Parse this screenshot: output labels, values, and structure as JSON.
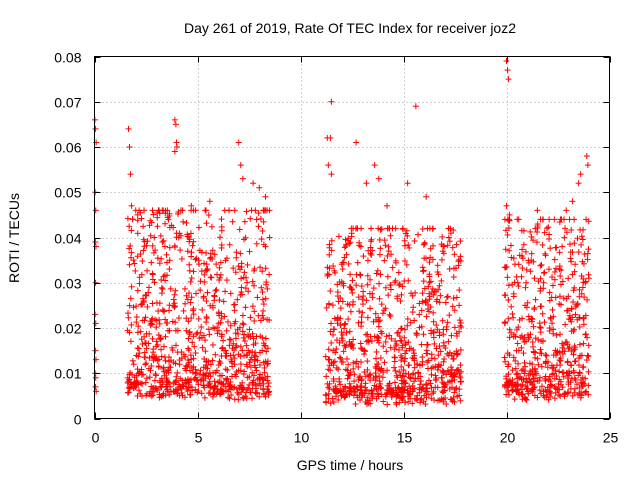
{
  "chart_data": {
    "type": "scatter",
    "title": "Day 261 of 2019, Rate Of TEC Index for receiver joz2",
    "xlabel": "GPS time / hours",
    "ylabel": "ROTI / TECUs",
    "xlim": [
      0,
      25
    ],
    "ylim": [
      0,
      0.08
    ],
    "xticks": [
      0,
      5,
      10,
      15,
      20,
      25
    ],
    "xtick_labels": [
      "0",
      "5",
      "10",
      "15",
      "20",
      "25"
    ],
    "yticks": [
      0,
      0.01,
      0.02,
      0.03,
      0.04,
      0.05,
      0.06,
      0.07,
      0.08
    ],
    "ytick_labels": [
      "0",
      "0.01",
      "0.02",
      "0.03",
      "0.04",
      "0.05",
      "0.06",
      "0.07",
      "0.08"
    ],
    "grid": true,
    "marker": "+",
    "series_color": "#ff0000",
    "series": [
      {
        "name": "ROTI",
        "points": [
          [
            0.02,
            0.066
          ],
          [
            0.05,
            0.064
          ],
          [
            0.08,
            0.061
          ],
          [
            0.03,
            0.05
          ],
          [
            0.06,
            0.046
          ],
          [
            0.04,
            0.039
          ],
          [
            0.07,
            0.038
          ],
          [
            0.05,
            0.03
          ],
          [
            0.03,
            0.023
          ],
          [
            0.06,
            0.021
          ],
          [
            0.04,
            0.015
          ],
          [
            0.07,
            0.013
          ],
          [
            0.03,
            0.01
          ],
          [
            0.06,
            0.009
          ],
          [
            0.05,
            0.007
          ],
          [
            0.08,
            0.006
          ],
          [
            1.65,
            0.064
          ],
          [
            1.7,
            0.06
          ],
          [
            1.75,
            0.054
          ],
          [
            1.8,
            0.047
          ],
          [
            1.85,
            0.044
          ],
          [
            1.9,
            0.035
          ],
          [
            1.7,
            0.034
          ],
          [
            2.9,
            0.04
          ],
          [
            3.3,
            0.039
          ],
          [
            3.9,
            0.066
          ],
          [
            3.95,
            0.065
          ],
          [
            3.98,
            0.061
          ],
          [
            4.0,
            0.06
          ],
          [
            3.9,
            0.059
          ],
          [
            4.7,
            0.047
          ],
          [
            4.8,
            0.046
          ],
          [
            5.6,
            0.048
          ],
          [
            7.0,
            0.061
          ],
          [
            7.1,
            0.056
          ],
          [
            7.2,
            0.053
          ],
          [
            7.7,
            0.052
          ],
          [
            8.0,
            0.051
          ],
          [
            8.3,
            0.049
          ],
          [
            8.5,
            0.04
          ],
          [
            11.3,
            0.062
          ],
          [
            11.45,
            0.062
          ],
          [
            11.5,
            0.07
          ],
          [
            11.35,
            0.056
          ],
          [
            11.5,
            0.054
          ],
          [
            12.7,
            0.061
          ],
          [
            13.2,
            0.052
          ],
          [
            13.6,
            0.056
          ],
          [
            13.8,
            0.053
          ],
          [
            14.2,
            0.047
          ],
          [
            15.2,
            0.052
          ],
          [
            15.6,
            0.069
          ],
          [
            16.1,
            0.049
          ],
          [
            17.2,
            0.04
          ],
          [
            17.7,
            0.025
          ],
          [
            20.0,
            0.079
          ],
          [
            20.05,
            0.077
          ],
          [
            20.1,
            0.075
          ],
          [
            20.0,
            0.047
          ],
          [
            20.15,
            0.045
          ],
          [
            21.5,
            0.046
          ],
          [
            22.9,
            0.046
          ],
          [
            23.2,
            0.048
          ],
          [
            23.5,
            0.052
          ],
          [
            23.6,
            0.054
          ],
          [
            23.9,
            0.058
          ],
          [
            23.95,
            0.056
          ],
          [
            20.1,
            0.012
          ],
          [
            20.3,
            0.008
          ],
          [
            20.6,
            0.015
          ],
          [
            20.9,
            0.025
          ],
          [
            21.2,
            0.035
          ],
          [
            21.4,
            0.042
          ],
          [
            21.8,
            0.03
          ],
          [
            22.1,
            0.02
          ],
          [
            22.4,
            0.014
          ],
          [
            22.7,
            0.038
          ],
          [
            23.0,
            0.027
          ],
          [
            23.3,
            0.016
          ],
          [
            23.7,
            0.009
          ],
          [
            24.0,
            0.031
          ]
        ]
      }
    ],
    "dense_segments": [
      {
        "x_start": 1.6,
        "x_end": 8.5,
        "y_min": 0.004,
        "y_max": 0.046
      },
      {
        "x_start": 11.2,
        "x_end": 17.8,
        "y_min": 0.003,
        "y_max": 0.042
      },
      {
        "x_start": 19.9,
        "x_end": 24.0,
        "y_min": 0.004,
        "y_max": 0.044
      }
    ]
  }
}
